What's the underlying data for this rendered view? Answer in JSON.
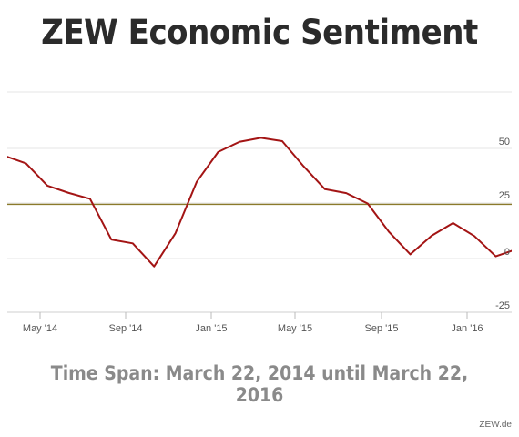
{
  "chart_data": {
    "type": "line",
    "title": "ZEW Economic Sentiment",
    "subtitle": "Time Span: March 22, 2014 until March 22, 2016",
    "xlabel": "",
    "ylabel": "",
    "x": [
      "2014-03",
      "2014-04",
      "2014-05",
      "2014-06",
      "2014-07",
      "2014-08",
      "2014-09",
      "2014-10",
      "2014-11",
      "2014-12",
      "2015-01",
      "2015-02",
      "2015-03",
      "2015-04",
      "2015-05",
      "2015-06",
      "2015-07",
      "2015-08",
      "2015-09",
      "2015-10",
      "2015-11",
      "2015-12",
      "2016-01",
      "2016-02",
      "2016-03"
    ],
    "series": [
      {
        "name": "",
        "color": "#a31414",
        "values": [
          46.6,
          43.2,
          33.1,
          29.8,
          27.1,
          8.6,
          6.9,
          -3.6,
          11.5,
          34.9,
          48.4,
          53.0,
          54.8,
          53.3,
          41.9,
          31.5,
          29.7,
          25.0,
          12.1,
          1.9,
          10.4,
          16.1,
          10.2,
          1.0,
          4.3
        ]
      }
    ],
    "reference_line": {
      "value": 24.6,
      "color": "#8b7a2b"
    },
    "y_ticks": [
      "50",
      "25",
      "0",
      "-25"
    ],
    "x_ticks": [
      "May '14",
      "Sep '14",
      "Jan '15",
      "May '15",
      "Sep '15",
      "Jan '16"
    ],
    "ylim": [
      -25,
      50
    ],
    "grid": true
  },
  "credit": "ZEW.de"
}
